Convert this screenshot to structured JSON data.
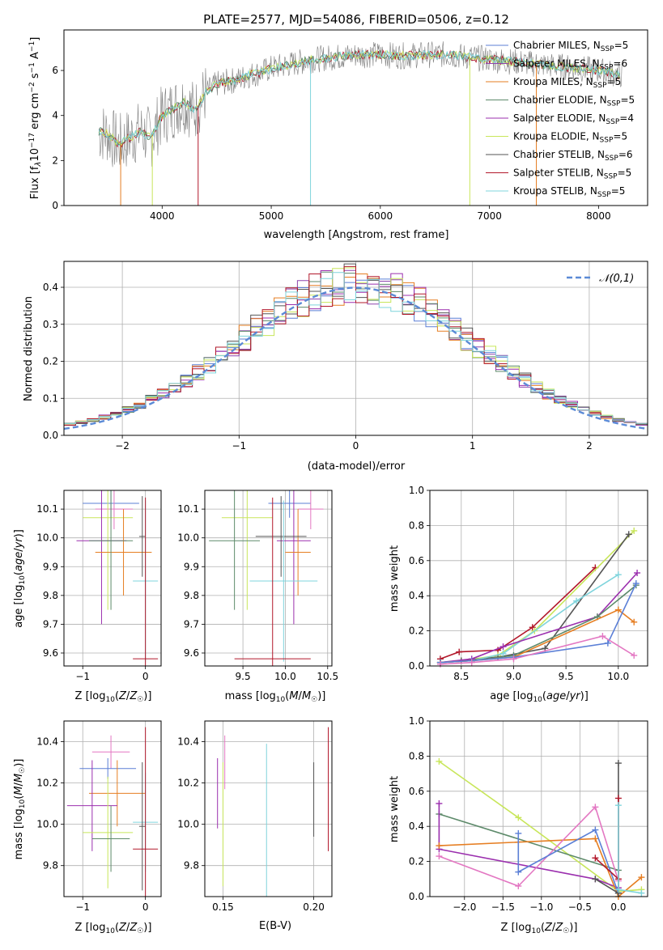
{
  "figure": {
    "title": "PLATE=2577, MJD=54086, FIBERID=0506, z=0.12",
    "colors": {
      "chabrier_miles": "#5b7fd6",
      "salpeter_miles": "#8e44ad",
      "kroupa_miles": "#e67e22",
      "chabrier_elodie": "#5d8a6a",
      "salpeter_elodie": "#9b2fae",
      "kroupa_elodie": "#c8e65a",
      "chabrier_stelib": "#555555",
      "salpeter_stelib": "#b2182b",
      "kroupa_stelib": "#7fd4dc",
      "extra_pink": "#e377c2",
      "spectrum_gray": "#808080",
      "normal_curve": "#5b8ad6"
    }
  },
  "chart_data": [
    {
      "id": "spectrum",
      "type": "line",
      "xlabel": "wavelength [Angstrom, rest frame]",
      "ylabel": "Flux [f",
      "xlim": [
        3100,
        8450
      ],
      "ylim": [
        0,
        7.8
      ],
      "xticks": [
        "4000",
        "5000",
        "6000",
        "7000",
        "8000"
      ],
      "yticks": [
        "0",
        "2",
        "4",
        "6"
      ],
      "legend_position": "right",
      "legend": [
        {
          "key": "chabrier_miles",
          "label": "Chabrier MILES, N",
          "n": "5"
        },
        {
          "key": "salpeter_miles",
          "label": "Salpeter MILES, N",
          "n": "6"
        },
        {
          "key": "kroupa_miles",
          "label": "Kroupa MILES, N",
          "n": "5"
        },
        {
          "key": "chabrier_elodie",
          "label": "Chabrier ELODIE, N",
          "n": "5"
        },
        {
          "key": "salpeter_elodie",
          "label": "Salpeter ELODIE, N",
          "n": "4"
        },
        {
          "key": "kroupa_elodie",
          "label": "Kroupa ELODIE, N",
          "n": "5"
        },
        {
          "key": "chabrier_stelib",
          "label": "Chabrier STELIB, N",
          "n": "6"
        },
        {
          "key": "salpeter_stelib",
          "label": "Salpeter STELIB, N",
          "n": "5"
        },
        {
          "key": "kroupa_stelib",
          "label": "Kroupa STELIB, N",
          "n": "5"
        }
      ],
      "continuum": [
        [
          3400,
          3.3
        ],
        [
          3500,
          3.2
        ],
        [
          3600,
          2.7
        ],
        [
          3700,
          3.0
        ],
        [
          3800,
          3.3
        ],
        [
          3900,
          3.0
        ],
        [
          4000,
          4.0
        ],
        [
          4100,
          4.3
        ],
        [
          4200,
          4.6
        ],
        [
          4300,
          4.2
        ],
        [
          4400,
          5.0
        ],
        [
          4500,
          5.4
        ],
        [
          4600,
          5.5
        ],
        [
          4700,
          5.6
        ],
        [
          4800,
          5.8
        ],
        [
          4900,
          5.9
        ],
        [
          5000,
          6.1
        ],
        [
          5200,
          6.3
        ],
        [
          5400,
          6.5
        ],
        [
          5600,
          6.6
        ],
        [
          5800,
          6.7
        ],
        [
          6000,
          6.7
        ],
        [
          6200,
          6.65
        ],
        [
          6400,
          6.7
        ],
        [
          6600,
          6.7
        ],
        [
          6800,
          6.6
        ],
        [
          7000,
          6.5
        ],
        [
          7200,
          6.4
        ],
        [
          7400,
          6.3
        ],
        [
          7600,
          6.2
        ],
        [
          7800,
          6.1
        ],
        [
          8000,
          6.0
        ],
        [
          8200,
          5.8
        ]
      ]
    },
    {
      "id": "residual_hist",
      "type": "line",
      "xlabel": "(data-model)/error",
      "ylabel": "Normed distribution",
      "xlim": [
        -2.5,
        2.5
      ],
      "ylim": [
        0,
        0.47
      ],
      "xticks": [
        "−2",
        "−1",
        "0",
        "1",
        "2"
      ],
      "yticks": [
        "0.0",
        "0.1",
        "0.2",
        "0.3",
        "0.4"
      ],
      "legend": "𝒩(0,1)",
      "legend_position": "upper right",
      "bin_width": 0.1,
      "series": [
        {
          "key": "chabrier_miles",
          "seed": 11
        },
        {
          "key": "salpeter_miles",
          "seed": 23
        },
        {
          "key": "kroupa_miles",
          "seed": 37
        },
        {
          "key": "chabrier_elodie",
          "seed": 41
        },
        {
          "key": "salpeter_elodie",
          "seed": 53
        },
        {
          "key": "kroupa_elodie",
          "seed": 67
        },
        {
          "key": "chabrier_stelib",
          "seed": 71
        },
        {
          "key": "salpeter_stelib",
          "seed": 89
        },
        {
          "key": "kroupa_stelib",
          "seed": 97
        }
      ]
    },
    {
      "id": "age_vs_z",
      "type": "scatter",
      "xlabel": "Z [log",
      "ylabel": "age  [log",
      "xlim": [
        -1.3,
        0.25
      ],
      "ylim": [
        9.555,
        10.165
      ],
      "xticks": [
        {
          "v": -1,
          "t": "−1"
        },
        {
          "v": 0,
          "t": "0"
        }
      ],
      "yticks": [
        {
          "v": 9.6,
          "t": "9.6"
        },
        {
          "v": 9.7,
          "t": "9.7"
        },
        {
          "v": 9.8,
          "t": "9.8"
        },
        {
          "v": 9.9,
          "t": "9.9"
        },
        {
          "v": 10.0,
          "t": "10.0"
        },
        {
          "v": 10.1,
          "t": "10.1"
        }
      ],
      "points": [
        {
          "key": "chabrier_miles",
          "x": -0.55,
          "y": 10.12,
          "ex": 0.45,
          "ey": 0.05
        },
        {
          "key": "extra_pink",
          "x": -0.5,
          "y": 10.1,
          "ex": 0.3,
          "ey": 0.07
        },
        {
          "key": "kroupa_elodie",
          "x": -0.6,
          "y": 10.07,
          "ex": 0.4,
          "ey": 0.32
        },
        {
          "key": "salpeter_elodie",
          "x": -0.7,
          "y": 9.99,
          "ex": 0.4,
          "ey": 0.29
        },
        {
          "key": "kroupa_miles",
          "x": -0.35,
          "y": 9.95,
          "ex": 0.45,
          "ey": 0.15
        },
        {
          "key": "chabrier_stelib",
          "x": -0.05,
          "y": 10.005,
          "ex": 0.05,
          "ey": 0.14
        },
        {
          "key": "chabrier_elodie",
          "x": -0.55,
          "y": 9.99,
          "ex": 0.35,
          "ey": 0.24
        },
        {
          "key": "kroupa_stelib",
          "x": 0.0,
          "y": 9.85,
          "ex": 0.2,
          "ey": 0.28
        },
        {
          "key": "salpeter_stelib",
          "x": 0.0,
          "y": 9.58,
          "ex": 0.2,
          "ey": 0.56
        }
      ]
    },
    {
      "id": "age_vs_mass",
      "type": "scatter",
      "xlabel": "mass [log",
      "ylabel": "",
      "xlim": [
        9.05,
        10.55
      ],
      "ylim": [
        9.555,
        10.165
      ],
      "xticks": [
        {
          "v": 9.5,
          "t": "9.5"
        },
        {
          "v": 10.0,
          "t": "10.0"
        },
        {
          "v": 10.5,
          "t": "10.5"
        }
      ],
      "yticks": [
        {
          "v": 9.6,
          "t": "9.6"
        },
        {
          "v": 9.7,
          "t": "9.7"
        },
        {
          "v": 9.8,
          "t": "9.8"
        },
        {
          "v": 9.9,
          "t": "9.9"
        },
        {
          "v": 10.0,
          "t": "10.0"
        },
        {
          "v": 10.1,
          "t": "10.1"
        }
      ],
      "points": [
        {
          "key": "chabrier_miles",
          "x": 10.05,
          "y": 10.12,
          "ex": 0.25,
          "ey": 0.05
        },
        {
          "key": "extra_pink",
          "x": 10.3,
          "y": 10.1,
          "ex": 0.15,
          "ey": 0.07
        },
        {
          "key": "kroupa_elodie",
          "x": 9.55,
          "y": 10.07,
          "ex": 0.3,
          "ey": 0.32
        },
        {
          "key": "salpeter_elodie",
          "x": 10.1,
          "y": 9.99,
          "ex": 0.2,
          "ey": 0.29
        },
        {
          "key": "kroupa_miles",
          "x": 10.15,
          "y": 9.95,
          "ex": 0.15,
          "ey": 0.15
        },
        {
          "key": "chabrier_stelib",
          "x": 9.95,
          "y": 10.005,
          "ex": 0.3,
          "ey": 0.14
        },
        {
          "key": "chabrier_elodie",
          "x": 9.4,
          "y": 9.99,
          "ex": 0.3,
          "ey": 0.24
        },
        {
          "key": "kroupa_stelib",
          "x": 9.98,
          "y": 9.85,
          "ex": 0.4,
          "ey": 0.28
        },
        {
          "key": "salpeter_stelib",
          "x": 9.85,
          "y": 9.58,
          "ex": 0.45,
          "ey": 0.56
        }
      ]
    },
    {
      "id": "weight_vs_age",
      "type": "line",
      "xlabel": "age  [log",
      "ylabel": "mass weight",
      "xlim": [
        8.2,
        10.28
      ],
      "ylim": [
        0,
        1.0
      ],
      "xticks": [
        {
          "v": 8.5,
          "t": "8.5"
        },
        {
          "v": 9.0,
          "t": "9.0"
        },
        {
          "v": 9.5,
          "t": "9.5"
        },
        {
          "v": 10.0,
          "t": "10.0"
        }
      ],
      "yticks": [
        {
          "v": 0,
          "t": "0.0"
        },
        {
          "v": 0.2,
          "t": "0.2"
        },
        {
          "v": 0.4,
          "t": "0.4"
        },
        {
          "v": 0.6,
          "t": "0.6"
        },
        {
          "v": 0.8,
          "t": "0.8"
        },
        {
          "v": 1.0,
          "t": "1.0"
        }
      ],
      "series": [
        {
          "key": "salpeter_stelib",
          "x": [
            8.3,
            8.48,
            8.85,
            9.18,
            9.78
          ],
          "y": [
            0.04,
            0.08,
            0.09,
            0.22,
            0.56
          ]
        },
        {
          "key": "kroupa_elodie",
          "x": [
            8.3,
            8.5,
            8.85,
            9.2,
            10.15
          ],
          "y": [
            0.02,
            0.03,
            0.06,
            0.2,
            0.77
          ]
        },
        {
          "key": "chabrier_stelib",
          "x": [
            8.3,
            8.5,
            8.85,
            9.3,
            10.1
          ],
          "y": [
            0.02,
            0.03,
            0.05,
            0.1,
            0.75
          ]
        },
        {
          "key": "kroupa_stelib",
          "x": [
            8.3,
            8.6,
            8.9,
            9.6,
            10.0
          ],
          "y": [
            0.02,
            0.03,
            0.07,
            0.37,
            0.52
          ]
        },
        {
          "key": "salpeter_elodie",
          "x": [
            8.3,
            8.6,
            8.9,
            9.8,
            10.18
          ],
          "y": [
            0.02,
            0.04,
            0.11,
            0.28,
            0.53
          ]
        },
        {
          "key": "chabrier_elodie",
          "x": [
            8.3,
            8.6,
            9.0,
            9.8,
            10.17
          ],
          "y": [
            0.02,
            0.03,
            0.06,
            0.28,
            0.46
          ]
        },
        {
          "key": "kroupa_miles",
          "x": [
            8.3,
            8.6,
            9.0,
            10.0,
            10.15
          ],
          "y": [
            0.02,
            0.03,
            0.05,
            0.32,
            0.25
          ]
        },
        {
          "key": "chabrier_miles",
          "x": [
            8.3,
            8.6,
            9.0,
            9.9,
            10.17
          ],
          "y": [
            0.02,
            0.03,
            0.05,
            0.13,
            0.47
          ]
        },
        {
          "key": "extra_pink",
          "x": [
            8.3,
            8.6,
            9.0,
            9.85,
            10.15
          ],
          "y": [
            0.01,
            0.02,
            0.04,
            0.17,
            0.06
          ]
        }
      ]
    },
    {
      "id": "mass_vs_z",
      "type": "scatter",
      "xlabel": "Z [log",
      "ylabel": "mass [log",
      "xlim": [
        -1.3,
        0.25
      ],
      "ylim": [
        9.65,
        10.5
      ],
      "xticks": [
        {
          "v": -1,
          "t": "−1"
        },
        {
          "v": 0,
          "t": "0"
        }
      ],
      "yticks": [
        {
          "v": 9.8,
          "t": "9.8"
        },
        {
          "v": 10.0,
          "t": "10.0"
        },
        {
          "v": 10.2,
          "t": "10.2"
        },
        {
          "v": 10.4,
          "t": "10.4"
        }
      ],
      "points": [
        {
          "key": "extra_pink",
          "x": -0.55,
          "y": 10.35,
          "ex": 0.3,
          "ey": 0.08
        },
        {
          "key": "chabrier_miles",
          "x": -0.6,
          "y": 10.27,
          "ex": 0.45,
          "ey": 0.05
        },
        {
          "key": "kroupa_miles",
          "x": -0.45,
          "y": 10.15,
          "ex": 0.45,
          "ey": 0.16
        },
        {
          "key": "salpeter_elodie",
          "x": -0.85,
          "y": 10.09,
          "ex": 0.4,
          "ey": 0.22
        },
        {
          "key": "kroupa_elodie",
          "x": -0.6,
          "y": 9.96,
          "ex": 0.4,
          "ey": 0.27
        },
        {
          "key": "chabrier_elodie",
          "x": -0.55,
          "y": 9.93,
          "ex": 0.3,
          "ey": 0.16
        },
        {
          "key": "kroupa_stelib",
          "x": -0.0,
          "y": 10.01,
          "ex": 0.2,
          "ey": 0.24
        },
        {
          "key": "chabrier_stelib",
          "x": -0.05,
          "y": 9.99,
          "ex": 0.05,
          "ey": 0.31
        },
        {
          "key": "salpeter_stelib",
          "x": 0.0,
          "y": 9.88,
          "ex": 0.2,
          "ey": 0.59
        }
      ]
    },
    {
      "id": "mass_vs_ebv",
      "type": "scatter",
      "xlabel": "E(B-V)",
      "ylabel": "",
      "xlim": [
        0.14,
        0.21
      ],
      "ylim": [
        9.65,
        10.5
      ],
      "xticks": [
        {
          "v": 0.15,
          "t": "0.15"
        },
        {
          "v": 0.2,
          "t": "0.20"
        }
      ],
      "yticks": [
        {
          "v": 9.8,
          "t": "9.8"
        },
        {
          "v": 10.0,
          "t": "10.0"
        },
        {
          "v": 10.2,
          "t": "10.2"
        },
        {
          "v": 10.4,
          "t": "10.4"
        }
      ],
      "points": [
        {
          "key": "salpeter_elodie",
          "x": 0.147,
          "y": 10.15,
          "ex": 0,
          "ey": 0.17
        },
        {
          "key": "extra_pink",
          "x": 0.151,
          "y": 10.3,
          "ex": 0,
          "ey": 0.13
        },
        {
          "key": "kroupa_elodie",
          "x": 0.15,
          "y": 10.0,
          "ex": 0,
          "ey": 0.3
        },
        {
          "key": "kroupa_stelib",
          "x": 0.174,
          "y": 10.0,
          "ex": 0,
          "ey": 0.39
        },
        {
          "key": "chabrier_stelib",
          "x": 0.2,
          "y": 10.12,
          "ex": 0,
          "ey": 0.18
        },
        {
          "key": "salpeter_stelib",
          "x": 0.208,
          "y": 10.17,
          "ex": 0,
          "ey": 0.3
        }
      ]
    },
    {
      "id": "weight_vs_z",
      "type": "line",
      "xlabel": "Z [log",
      "ylabel": "mass weight",
      "xlim": [
        -2.45,
        0.38
      ],
      "ylim": [
        0,
        1.0
      ],
      "xticks": [
        {
          "v": -2.0,
          "t": "−2.0"
        },
        {
          "v": -1.5,
          "t": "−1.5"
        },
        {
          "v": -1.0,
          "t": "−1.0"
        },
        {
          "v": -0.5,
          "t": "−0.5"
        },
        {
          "v": 0.0,
          "t": "0.0"
        }
      ],
      "yticks": [
        {
          "v": 0,
          "t": "0.0"
        },
        {
          "v": 0.2,
          "t": "0.2"
        },
        {
          "v": 0.4,
          "t": "0.4"
        },
        {
          "v": 0.6,
          "t": "0.6"
        },
        {
          "v": 0.8,
          "t": "0.8"
        },
        {
          "v": 1.0,
          "t": "1.0"
        }
      ],
      "series": [
        {
          "key": "kroupa_elodie",
          "x": [
            -2.33,
            -1.3,
            0.0,
            0.3
          ],
          "y": [
            0.77,
            0.45,
            0.03,
            0.04
          ]
        },
        {
          "key": "chabrier_elodie",
          "x": [
            -2.33,
            0.0,
            0.0
          ],
          "y": [
            0.47,
            0.15,
            0.02
          ]
        },
        {
          "key": "salpeter_elodie",
          "x": [
            -2.33,
            -2.33,
            -0.3,
            0.0
          ],
          "y": [
            0.53,
            0.27,
            0.1,
            0.05
          ]
        },
        {
          "key": "kroupa_miles",
          "x": [
            -2.33,
            -0.3,
            0.0,
            0.3
          ],
          "y": [
            0.29,
            0.33,
            0.0,
            0.11
          ]
        },
        {
          "key": "extra_pink",
          "x": [
            -2.33,
            -1.3,
            -0.3,
            0.0
          ],
          "y": [
            0.23,
            0.06,
            0.51,
            0.09
          ]
        },
        {
          "key": "chabrier_miles",
          "x": [
            -1.3,
            -1.3,
            -0.3,
            0.0
          ],
          "y": [
            0.36,
            0.14,
            0.38,
            0.02
          ]
        },
        {
          "key": "chabrier_stelib",
          "x": [
            -0.3,
            0.0,
            0.0
          ],
          "y": [
            0.1,
            0.02,
            0.76
          ]
        },
        {
          "key": "salpeter_stelib",
          "x": [
            -0.3,
            0.0,
            0.0
          ],
          "y": [
            0.22,
            0.1,
            0.56
          ]
        },
        {
          "key": "kroupa_stelib",
          "x": [
            0.0,
            0.0,
            0.3
          ],
          "y": [
            0.52,
            0.04,
            0.02
          ]
        }
      ]
    }
  ]
}
